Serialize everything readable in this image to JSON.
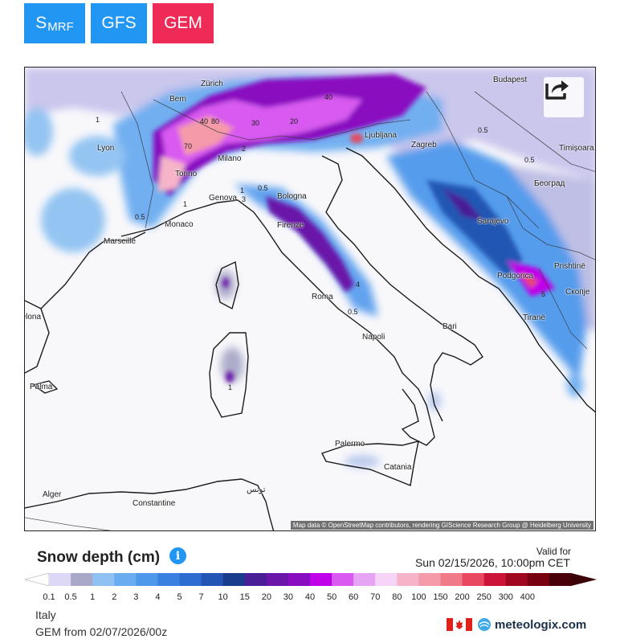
{
  "models": [
    {
      "main": "S",
      "sub": "MRF"
    },
    {
      "main": "GFS",
      "sub": ""
    },
    {
      "main": "GEM",
      "sub": ""
    }
  ],
  "colors": {
    "active_model": "#ee2a57",
    "model_button": "#2196f3",
    "sea": "#f8f8fb"
  },
  "map": {
    "cities": [
      "Bern",
      "Zürich",
      "Lyon",
      "Torino",
      "Milano",
      "Genova",
      "Monaco",
      "Marseille",
      "Bologna",
      "Firenze",
      "Roma",
      "Napoli",
      "Bari",
      "Palermo",
      "Catania",
      "Ljubljana",
      "Zagreb",
      "Budapest",
      "Timișoara",
      "Београд",
      "Sarajevo",
      "Podgorica",
      "Prishtinë",
      "Скопје",
      "Tiranë",
      "Barcelona",
      "Palma",
      "Alger",
      "Constantine",
      "تونس"
    ],
    "values": [
      "80",
      "40",
      "70",
      "40",
      "20",
      "30",
      "0.5",
      "1",
      "0.5",
      "1",
      "4",
      "0.5",
      "1",
      "0.5",
      "0.5",
      "2",
      "3",
      "1",
      "5"
    ],
    "attribution": "Map data © OpenStreetMap contributors, rendering GIScience Research Group @ Heidelberg University",
    "share_icon": "share-icon"
  },
  "legend": {
    "title": "Snow depth (cm)",
    "info_icon": "info-icon",
    "ticks": [
      "0.1",
      "0.5",
      "1",
      "2",
      "3",
      "4",
      "5",
      "7",
      "10",
      "15",
      "20",
      "30",
      "40",
      "50",
      "60",
      "70",
      "80",
      "100",
      "150",
      "200",
      "250",
      "300",
      "400"
    ],
    "colors": [
      "#dcd8f5",
      "#a8a8c8",
      "#8fc2f2",
      "#6aacf0",
      "#4e98ec",
      "#3a80e0",
      "#2d6cd0",
      "#2356b4",
      "#1a3c8c",
      "#4a1e96",
      "#6a16a8",
      "#8a0cc0",
      "#c000e8",
      "#d85af0",
      "#e8a4f4",
      "#f5d4f8",
      "#f6b4c8",
      "#f49aa8",
      "#f07a88",
      "#e84860",
      "#cc1438",
      "#a00820",
      "#780010",
      "#4a0008"
    ]
  },
  "valid": {
    "label": "Valid for",
    "time": "Sun 02/15/2026, 10:00pm CET"
  },
  "region": "Italy",
  "run": "GEM from 02/07/2026/00z",
  "logo": {
    "flag_icon": "canada-flag-icon",
    "text": "meteologix.com"
  }
}
